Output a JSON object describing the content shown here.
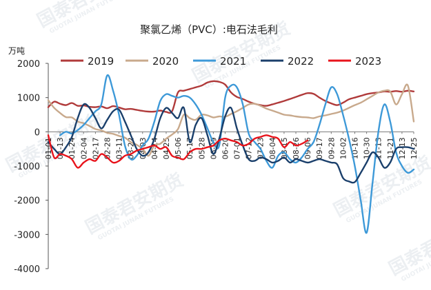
{
  "watermark": {
    "main": "国泰君安期货",
    "sub": "GUOTAI JUNAN FUTURES"
  },
  "chart_data": {
    "type": "line",
    "title": "聚氯乙烯（PVC）:电石法毛利",
    "ylabel": "万吨",
    "xlabel": "",
    "ylim": [
      -4000,
      2000
    ],
    "yticks": [
      2000,
      1000,
      0,
      -1000,
      -2000,
      -3000,
      -4000
    ],
    "ytick_labels": [
      "2000",
      "1000",
      "0",
      "-1000",
      "-2000",
      "-3000",
      "-4000"
    ],
    "grid": false,
    "legend_position": "top",
    "x_tick_labels": [
      "01-01",
      "01-13",
      "01-24",
      "02-04",
      "02-17",
      "02-28",
      "03-11",
      "03-22",
      "04-03",
      "04-14",
      "04-25",
      "05-06",
      "05-17",
      "05-28",
      "06-09",
      "06-20",
      "07-01",
      "07-12",
      "07-23",
      "08-04",
      "08-15",
      "08-26",
      "09-06",
      "09-17",
      "09-28",
      "10-02",
      "10-16",
      "10-30",
      "11-13",
      "11-21",
      "12-13",
      "12-25"
    ],
    "x": [
      0,
      0.5,
      1,
      1.5,
      2,
      2.5,
      3,
      3.5,
      4,
      4.5,
      5,
      5.5,
      6,
      6.5,
      7,
      7.5,
      8,
      8.5,
      9,
      9.5,
      10,
      10.5,
      11,
      11.5,
      12,
      12.5,
      13,
      13.5,
      14,
      14.5,
      15,
      15.5,
      16,
      16.5,
      17,
      17.5,
      18,
      18.5,
      19,
      19.5,
      20,
      20.5,
      21,
      21.5,
      22,
      22.5,
      23,
      23.5,
      24,
      24.5,
      25,
      25.5,
      26,
      26.5,
      27,
      27.5,
      28,
      28.5,
      29,
      29.5,
      30,
      30.5,
      31
    ],
    "series": [
      {
        "name": "2019",
        "color": "#b03a3a",
        "values": [
          720,
          880,
          820,
          780,
          840,
          760,
          770,
          730,
          720,
          740,
          690,
          750,
          710,
          660,
          670,
          640,
          610,
          590,
          590,
          620,
          580,
          600,
          1150,
          1200,
          1250,
          1300,
          1350,
          1440,
          1480,
          1460,
          1380,
          1150,
          1020,
          960,
          880,
          820,
          780,
          760,
          800,
          850,
          900,
          960,
          1020,
          1080,
          1130,
          1110,
          1000,
          900,
          830,
          780,
          850,
          950,
          1000,
          1050,
          1100,
          1130,
          1150,
          1180,
          1170,
          1190,
          1170,
          1200,
          1180
        ]
      },
      {
        "name": "2020",
        "color": "#c8a98c",
        "values": [
          920,
          700,
          550,
          430,
          420,
          300,
          250,
          170,
          80,
          40,
          -30,
          -60,
          -120,
          -170,
          -300,
          -380,
          -500,
          -700,
          -400,
          -350,
          -200,
          -80,
          80,
          500,
          400,
          350,
          500,
          480,
          420,
          450,
          440,
          520,
          600,
          700,
          800,
          820,
          760,
          680,
          620,
          560,
          500,
          480,
          450,
          430,
          420,
          400,
          450,
          480,
          520,
          560,
          620,
          700,
          780,
          850,
          950,
          1050,
          1150,
          1200,
          1180,
          800,
          1100,
          1350,
          300
        ]
      },
      {
        "name": "2021",
        "color": "#3d99d8",
        "values": [
          null,
          null,
          -100,
          0,
          -50,
          50,
          200,
          400,
          600,
          800,
          1650,
          1200,
          500,
          -400,
          -800,
          -700,
          -400,
          -200,
          300,
          900,
          1100,
          1050,
          1000,
          1050,
          1000,
          800,
          500,
          100,
          -300,
          -400,
          1000,
          1350,
          1300,
          800,
          -50,
          -300,
          -500,
          -850,
          -1050,
          -700,
          -600,
          -800,
          -900,
          -750,
          -500,
          -300,
          200,
          800,
          1300,
          1100,
          500,
          -200,
          -1000,
          -2000,
          -2950,
          -1500,
          0,
          800,
          300,
          -600,
          -1000,
          -1200,
          -1100
        ]
      },
      {
        "name": "2022",
        "color": "#1a3f6b",
        "values": [
          -300,
          -500,
          -650,
          -450,
          -150,
          400,
          800,
          700,
          400,
          100,
          350,
          600,
          650,
          300,
          -100,
          -500,
          -700,
          -600,
          -200,
          400,
          700,
          550,
          400,
          700,
          -300,
          200,
          400,
          -100,
          -650,
          -200,
          450,
          700,
          100,
          -400,
          -800,
          -850,
          -750,
          -800,
          -900,
          -850,
          -750,
          -900,
          -800,
          -850,
          -900,
          -850,
          -800,
          -850,
          -900,
          -950,
          -1350,
          -1450,
          -1470,
          -1200,
          -900,
          -600,
          -750,
          -1050,
          -900,
          -500,
          -450,
          -450,
          -500
        ]
      },
      {
        "name": "2023",
        "color": "#e8131b",
        "values": [
          -100,
          -750,
          -650,
          -700,
          -800,
          -1050,
          -900,
          -800,
          -850,
          -650,
          -750,
          -900,
          -850,
          -700,
          -650,
          -550,
          -500,
          -450,
          -400,
          -500,
          -450,
          -700,
          -750,
          -800,
          -600,
          -500,
          -500,
          -450,
          -400,
          -250,
          -200,
          -250,
          -300,
          -400,
          -350,
          -200,
          -150,
          -100,
          -150,
          -200,
          -450,
          -300,
          -400,
          -350,
          -250,
          null,
          null,
          null,
          null,
          null,
          null,
          null,
          null,
          null,
          null,
          null,
          null,
          null,
          null,
          null,
          null,
          null,
          null
        ]
      }
    ]
  }
}
